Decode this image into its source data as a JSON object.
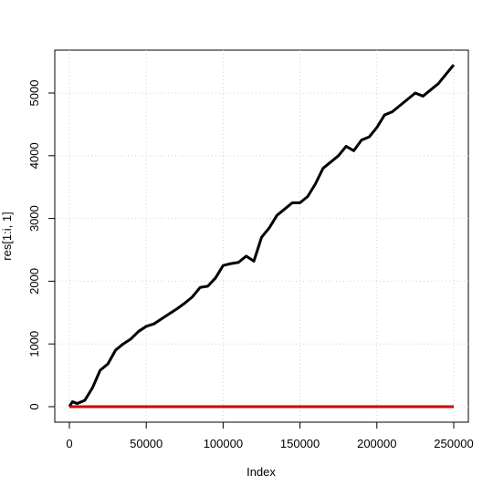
{
  "chart_data": {
    "type": "line",
    "xlabel": "Index",
    "ylabel": "res[1:i, 1]",
    "xlim": [
      -9500,
      259500
    ],
    "ylim": [
      -247,
      5683
    ],
    "xticks": [
      0,
      50000,
      100000,
      150000,
      200000,
      250000
    ],
    "yticks": [
      0,
      1000,
      2000,
      3000,
      4000,
      5000
    ],
    "grid": true,
    "series": [
      {
        "color": "#000000",
        "x": [
          0,
          2000,
          5000,
          8000,
          10000,
          15000,
          20000,
          25000,
          30000,
          35000,
          40000,
          45000,
          50000,
          55000,
          60000,
          65000,
          70000,
          75000,
          80000,
          85000,
          90000,
          95000,
          100000,
          105000,
          110000,
          115000,
          120000,
          125000,
          130000,
          135000,
          140000,
          145000,
          150000,
          155000,
          160000,
          165000,
          170000,
          175000,
          180000,
          185000,
          190000,
          195000,
          200000,
          205000,
          210000,
          215000,
          220000,
          225000,
          230000,
          235000,
          240000,
          245000,
          250000
        ],
        "values": [
          0,
          80,
          50,
          80,
          100,
          300,
          580,
          680,
          900,
          1000,
          1080,
          1200,
          1280,
          1320,
          1400,
          1480,
          1560,
          1650,
          1750,
          1900,
          1920,
          2050,
          2250,
          2280,
          2300,
          2400,
          2320,
          2700,
          2850,
          3050,
          3150,
          3250,
          3250,
          3350,
          3550,
          3800,
          3900,
          4000,
          4150,
          4080,
          4250,
          4300,
          4450,
          4650,
          4700,
          4800,
          4900,
          5000,
          4950,
          5050,
          5150,
          5300,
          5450
        ]
      },
      {
        "color": "#cc0000",
        "x": [
          0,
          250000
        ],
        "values": [
          0,
          0
        ]
      }
    ]
  }
}
